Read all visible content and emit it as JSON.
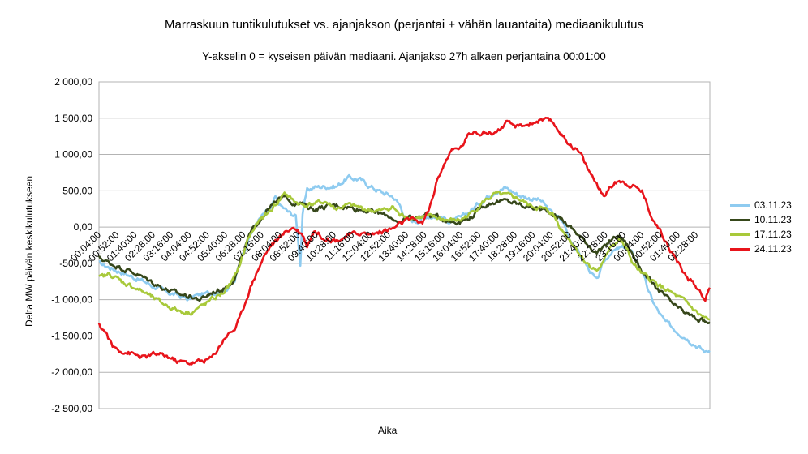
{
  "chart_data": {
    "type": "line",
    "title": "Marraskuun tuntikulutukset vs. ajanjakson (perjantai + vähän lauantaita) mediaanikulutus",
    "subtitle": "Y-akselin 0 = kyseisen päivän mediaani. Ajanjakso 27h alkaen perjantaina 00:01:00",
    "xlabel": "Aika",
    "ylabel": "Delta MW päivän keskikulutukseen",
    "ylim": [
      -2500,
      2000
    ],
    "yticks": [
      2000,
      1500,
      1000,
      500,
      0,
      -500,
      -1000,
      -1500,
      -2000,
      -2500
    ],
    "ytick_labels": [
      "2 000,00",
      "1 500,00",
      "1 000,00",
      "500,00",
      "0,00",
      "-500,00",
      "-1 000,00",
      "-1 500,00",
      "-2 000,00",
      "-2 500,00"
    ],
    "xrange_hours": [
      0.067,
      27.067
    ],
    "x_tick_labels": [
      "00:04:00",
      "00:52:00",
      "01:40:00",
      "02:28:00",
      "03:16:00",
      "04:04:00",
      "04:52:00",
      "05:40:00",
      "06:28:00",
      "07:16:00",
      "08:04:00",
      "08:52:00",
      "09:40:00",
      "10:28:00",
      "11:16:00",
      "12:04:00",
      "12:52:00",
      "13:40:00",
      "14:28:00",
      "15:16:00",
      "16:04:00",
      "16:52:00",
      "17:40:00",
      "18:28:00",
      "19:16:00",
      "20:04:00",
      "20:52:00",
      "21:40:00",
      "22:28:00",
      "23:16:00",
      "00:04:00",
      "00:52:00",
      "01:40:00",
      "02:28:00"
    ],
    "grid": true,
    "legend_position": "right",
    "series": [
      {
        "name": "03.11.23",
        "color": "#8ecbf0",
        "points": [
          [
            0,
            -500
          ],
          [
            0.5,
            -560
          ],
          [
            1,
            -620
          ],
          [
            2,
            -750
          ],
          [
            3,
            -900
          ],
          [
            3.5,
            -940
          ],
          [
            4,
            -1000
          ],
          [
            4.2,
            -950
          ],
          [
            5,
            -900
          ],
          [
            5.5,
            -880
          ],
          [
            6,
            -750
          ],
          [
            6.3,
            -400
          ],
          [
            6.7,
            -100
          ],
          [
            7,
            80
          ],
          [
            7.3,
            180
          ],
          [
            7.6,
            250
          ],
          [
            7.8,
            400
          ],
          [
            8,
            300
          ],
          [
            8.4,
            200
          ],
          [
            8.7,
            150
          ],
          [
            8.9,
            -500
          ],
          [
            9,
            200
          ],
          [
            9.2,
            500
          ],
          [
            9.5,
            550
          ],
          [
            10,
            560
          ],
          [
            10.5,
            560
          ],
          [
            11,
            680
          ],
          [
            11.5,
            660
          ],
          [
            12,
            560
          ],
          [
            12.5,
            480
          ],
          [
            13,
            420
          ],
          [
            13.3,
            300
          ],
          [
            13.6,
            100
          ],
          [
            14,
            80
          ],
          [
            14.5,
            150
          ],
          [
            15,
            150
          ],
          [
            15.5,
            80
          ],
          [
            16,
            120
          ],
          [
            16.5,
            250
          ],
          [
            17,
            380
          ],
          [
            17.5,
            500
          ],
          [
            18,
            540
          ],
          [
            18.5,
            450
          ],
          [
            19,
            400
          ],
          [
            19.5,
            370
          ],
          [
            20,
            200
          ],
          [
            20.5,
            80
          ],
          [
            20.8,
            -150
          ],
          [
            21.2,
            -350
          ],
          [
            21.6,
            -550
          ],
          [
            22,
            -750
          ],
          [
            22.3,
            -500
          ],
          [
            22.6,
            -350
          ],
          [
            23,
            -300
          ],
          [
            23.3,
            -280
          ],
          [
            23.6,
            -380
          ],
          [
            24,
            -600
          ],
          [
            24.3,
            -900
          ],
          [
            24.6,
            -1100
          ],
          [
            25,
            -1300
          ],
          [
            25.5,
            -1420
          ],
          [
            26,
            -1530
          ],
          [
            26.5,
            -1650
          ],
          [
            26.8,
            -1720
          ],
          [
            27,
            -1690
          ]
        ]
      },
      {
        "name": "10.11.23",
        "color": "#36471a",
        "points": [
          [
            0,
            -420
          ],
          [
            0.5,
            -500
          ],
          [
            1,
            -560
          ],
          [
            1.5,
            -620
          ],
          [
            2,
            -700
          ],
          [
            2.5,
            -780
          ],
          [
            3,
            -860
          ],
          [
            3.5,
            -920
          ],
          [
            4,
            -950
          ],
          [
            4.5,
            -1000
          ],
          [
            5,
            -900
          ],
          [
            5.5,
            -850
          ],
          [
            6,
            -700
          ],
          [
            6.3,
            -450
          ],
          [
            6.6,
            -150
          ],
          [
            7,
            60
          ],
          [
            7.5,
            260
          ],
          [
            8,
            380
          ],
          [
            8.2,
            450
          ],
          [
            8.5,
            350
          ],
          [
            9,
            310
          ],
          [
            9.5,
            250
          ],
          [
            10,
            280
          ],
          [
            10.5,
            300
          ],
          [
            11,
            280
          ],
          [
            11.5,
            250
          ],
          [
            12,
            220
          ],
          [
            12.5,
            180
          ],
          [
            13,
            130
          ],
          [
            13.3,
            20
          ],
          [
            13.6,
            150
          ],
          [
            14,
            130
          ],
          [
            14.5,
            180
          ],
          [
            15,
            140
          ],
          [
            15.5,
            80
          ],
          [
            16,
            80
          ],
          [
            16.5,
            150
          ],
          [
            17,
            300
          ],
          [
            17.5,
            350
          ],
          [
            18,
            360
          ],
          [
            18.5,
            320
          ],
          [
            19,
            280
          ],
          [
            19.5,
            250
          ],
          [
            20,
            200
          ],
          [
            20.5,
            100
          ],
          [
            21,
            -50
          ],
          [
            21.5,
            -200
          ],
          [
            22,
            -350
          ],
          [
            22.3,
            -300
          ],
          [
            22.6,
            -180
          ],
          [
            23,
            -120
          ],
          [
            23.3,
            -220
          ],
          [
            23.6,
            -380
          ],
          [
            24,
            -600
          ],
          [
            24.5,
            -800
          ],
          [
            25,
            -950
          ],
          [
            25.5,
            -1100
          ],
          [
            26,
            -1200
          ],
          [
            26.5,
            -1280
          ],
          [
            27,
            -1330
          ]
        ]
      },
      {
        "name": "17.11.23",
        "color": "#a8c93a",
        "points": [
          [
            0,
            -700
          ],
          [
            0.5,
            -650
          ],
          [
            1,
            -750
          ],
          [
            1.5,
            -820
          ],
          [
            2,
            -900
          ],
          [
            2.5,
            -1000
          ],
          [
            3,
            -1080
          ],
          [
            3.5,
            -1150
          ],
          [
            4,
            -1180
          ],
          [
            4.5,
            -1100
          ],
          [
            5,
            -1000
          ],
          [
            5.5,
            -900
          ],
          [
            6,
            -700
          ],
          [
            6.3,
            -450
          ],
          [
            6.6,
            -150
          ],
          [
            7,
            50
          ],
          [
            7.5,
            200
          ],
          [
            8,
            380
          ],
          [
            8.2,
            480
          ],
          [
            8.5,
            380
          ],
          [
            9,
            300
          ],
          [
            9.5,
            320
          ],
          [
            10,
            350
          ],
          [
            10.5,
            250
          ],
          [
            11,
            300
          ],
          [
            11.5,
            270
          ],
          [
            12,
            230
          ],
          [
            12.5,
            220
          ],
          [
            13,
            280
          ],
          [
            13.3,
            160
          ],
          [
            13.6,
            150
          ],
          [
            14,
            130
          ],
          [
            14.5,
            140
          ],
          [
            15,
            120
          ],
          [
            15.5,
            90
          ],
          [
            16,
            100
          ],
          [
            16.5,
            200
          ],
          [
            17,
            350
          ],
          [
            17.5,
            450
          ],
          [
            18,
            430
          ],
          [
            18.5,
            400
          ],
          [
            19,
            300
          ],
          [
            19.5,
            260
          ],
          [
            20,
            200
          ],
          [
            20.5,
            -50
          ],
          [
            21,
            -250
          ],
          [
            21.5,
            -480
          ],
          [
            22,
            -600
          ],
          [
            22.3,
            -500
          ],
          [
            22.6,
            -250
          ],
          [
            23,
            -180
          ],
          [
            23.3,
            -300
          ],
          [
            23.6,
            -500
          ],
          [
            24,
            -650
          ],
          [
            24.5,
            -750
          ],
          [
            25,
            -850
          ],
          [
            25.5,
            -950
          ],
          [
            26,
            -1050
          ],
          [
            26.5,
            -1200
          ],
          [
            27,
            -1300
          ]
        ]
      },
      {
        "name": "24.11.23",
        "color": "#e8141b",
        "points": [
          [
            0,
            -1350
          ],
          [
            0.3,
            -1450
          ],
          [
            0.6,
            -1650
          ],
          [
            1,
            -1700
          ],
          [
            1.5,
            -1750
          ],
          [
            2,
            -1800
          ],
          [
            2.5,
            -1750
          ],
          [
            3,
            -1780
          ],
          [
            3.5,
            -1850
          ],
          [
            4,
            -1870
          ],
          [
            4.5,
            -1850
          ],
          [
            5,
            -1800
          ],
          [
            5.3,
            -1650
          ],
          [
            5.6,
            -1500
          ],
          [
            6,
            -1400
          ],
          [
            6.3,
            -1200
          ],
          [
            6.6,
            -900
          ],
          [
            7,
            -600
          ],
          [
            7.3,
            -400
          ],
          [
            7.6,
            -250
          ],
          [
            8,
            -150
          ],
          [
            8.3,
            -50
          ],
          [
            8.6,
            0
          ],
          [
            9,
            -100
          ],
          [
            9.2,
            -250
          ],
          [
            9.5,
            -50
          ],
          [
            10,
            -150
          ],
          [
            10.5,
            -180
          ],
          [
            11,
            -120
          ],
          [
            11.5,
            -80
          ],
          [
            12,
            -100
          ],
          [
            12.5,
            -60
          ],
          [
            13,
            -20
          ],
          [
            13.5,
            80
          ],
          [
            14,
            100
          ],
          [
            14.3,
            50
          ],
          [
            14.6,
            250
          ],
          [
            15,
            700
          ],
          [
            15.3,
            900
          ],
          [
            15.6,
            1050
          ],
          [
            16,
            1100
          ],
          [
            16.3,
            1250
          ],
          [
            16.6,
            1330
          ],
          [
            17,
            1300
          ],
          [
            17.5,
            1300
          ],
          [
            18,
            1420
          ],
          [
            18.5,
            1380
          ],
          [
            19,
            1420
          ],
          [
            19.5,
            1470
          ],
          [
            20,
            1450
          ],
          [
            20.3,
            1350
          ],
          [
            20.6,
            1200
          ],
          [
            21,
            1100
          ],
          [
            21.3,
            1000
          ],
          [
            21.6,
            800
          ],
          [
            22,
            600
          ],
          [
            22.3,
            420
          ],
          [
            22.6,
            550
          ],
          [
            23,
            650
          ],
          [
            23.5,
            580
          ],
          [
            24,
            500
          ],
          [
            24.3,
            250
          ],
          [
            24.6,
            50
          ],
          [
            25,
            -150
          ],
          [
            25.5,
            -450
          ],
          [
            26,
            -700
          ],
          [
            26.5,
            -850
          ],
          [
            26.8,
            -980
          ],
          [
            27,
            -850
          ]
        ]
      }
    ]
  }
}
